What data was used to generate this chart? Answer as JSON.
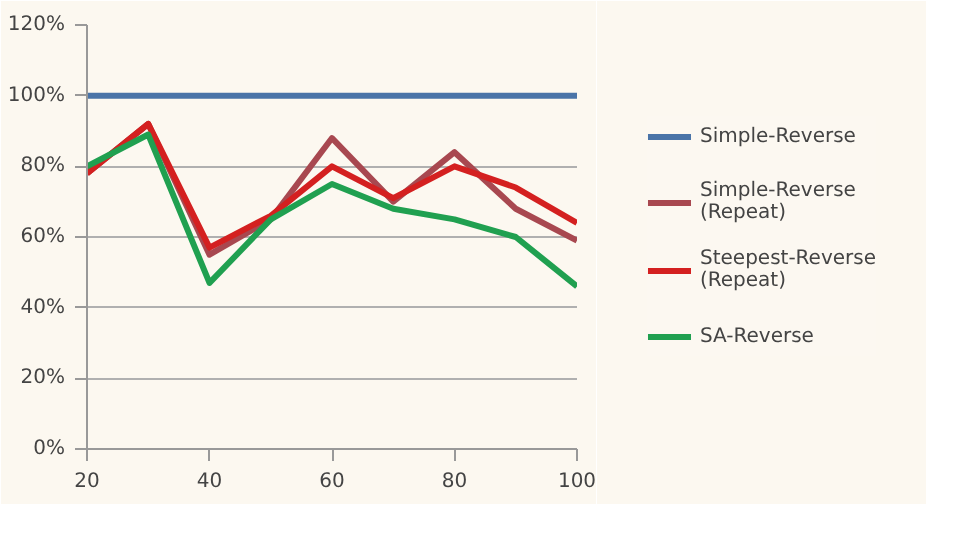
{
  "chart_data": {
    "type": "line",
    "x": [
      20,
      30,
      40,
      50,
      60,
      70,
      80,
      90,
      100
    ],
    "series": [
      {
        "name": "Simple-Reverse",
        "color": "#4a74a8",
        "values": [
          100,
          100,
          100,
          100,
          100,
          100,
          100,
          100,
          100
        ]
      },
      {
        "name": "Simple-Reverse (Repeat)",
        "color": "#a84850",
        "values": [
          78,
          92,
          55,
          65,
          88,
          70,
          84,
          68,
          59
        ]
      },
      {
        "name": "Steepest-Reverse (Repeat)",
        "color": "#d42020",
        "values": [
          78,
          92,
          57,
          66,
          80,
          71,
          80,
          74,
          64
        ]
      },
      {
        "name": "SA-Reverse",
        "color": "#20a050",
        "values": [
          80,
          89,
          47,
          65,
          75,
          68,
          65,
          60,
          46
        ]
      }
    ],
    "xlim": [
      20,
      100
    ],
    "xticks": [
      20,
      40,
      60,
      80,
      100
    ],
    "ylim": [
      0,
      120
    ],
    "yticks": [
      {
        "value": 0,
        "label": "0%"
      },
      {
        "value": 20,
        "label": "20%"
      },
      {
        "value": 40,
        "label": "40%"
      },
      {
        "value": 60,
        "label": "60%"
      },
      {
        "value": 80,
        "label": "80%"
      },
      {
        "value": 100,
        "label": "100%"
      },
      {
        "value": 120,
        "label": "120%"
      }
    ],
    "grid": "y",
    "legend": "right",
    "marker": "none",
    "line_style": "solid"
  }
}
